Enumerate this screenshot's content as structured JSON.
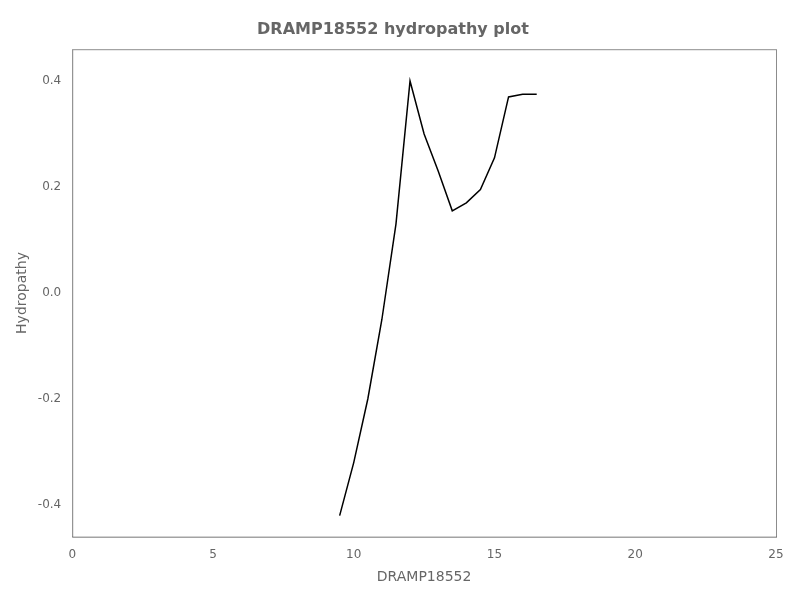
{
  "chart_data": {
    "type": "line",
    "title": "DRAMP18552 hydropathy plot",
    "xlabel": "DRAMP18552",
    "ylabel": "Hydropathy",
    "x": [
      9.5,
      10.0,
      10.5,
      11.0,
      11.5,
      12.0,
      12.5,
      13.0,
      13.5,
      14.0,
      14.5,
      15.0,
      15.5,
      16.0,
      16.5
    ],
    "values": [
      -0.42,
      -0.32,
      -0.2,
      -0.05,
      0.13,
      0.4,
      0.3,
      0.23,
      0.155,
      0.17,
      0.195,
      0.255,
      0.37,
      0.375,
      0.375
    ],
    "color": "#000000",
    "xlim": [
      0,
      25
    ],
    "xticks": [
      0,
      5,
      10,
      15,
      20,
      25
    ],
    "ylim": [
      -0.46,
      0.46
    ],
    "yticks": [
      -0.4,
      -0.2,
      {
        "value": 0,
        "label": "0.0"
      },
      0.2,
      0.4
    ],
    "grid": false
  }
}
